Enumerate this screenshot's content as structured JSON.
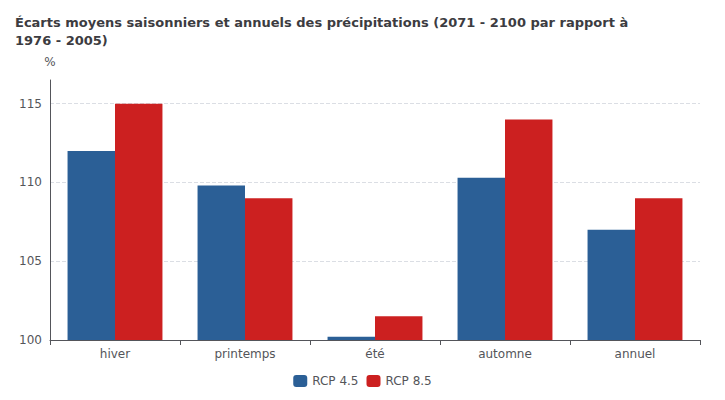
{
  "chart_data": {
    "type": "bar",
    "title": "Écarts moyens saisonniers et annuels des précipitations (2071 - 2100 par rapport à\n1976 - 2005)",
    "categories": [
      "hiver",
      "printemps",
      "été",
      "automne",
      "annuel"
    ],
    "series": [
      {
        "name": "RCP 4.5",
        "color": "#2b5f96",
        "values": [
          112.0,
          109.8,
          100.2,
          110.3,
          107.0
        ]
      },
      {
        "name": "RCP 8.5",
        "color": "#cc2020",
        "values": [
          115.0,
          109.0,
          101.5,
          114.0,
          109.0
        ]
      }
    ],
    "ylabel": "%",
    "ylim": [
      100,
      116.5
    ],
    "yticks": [
      100,
      105,
      110,
      115
    ],
    "grid": true,
    "legend": "bottom"
  }
}
